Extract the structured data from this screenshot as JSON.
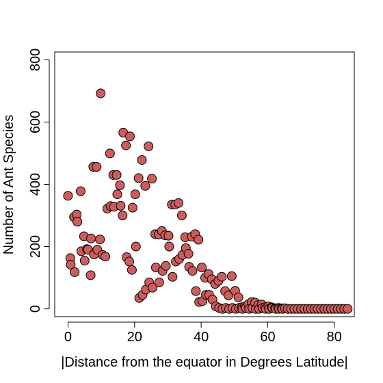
{
  "chart_data": {
    "type": "scatter",
    "title": "",
    "xlabel": "|Distance from the equator in Degrees Latitude|",
    "ylabel": "Number of Ant Species",
    "xlim": [
      -4,
      86
    ],
    "ylim": [
      -25,
      825
    ],
    "x_ticks": [
      0,
      20,
      40,
      60,
      80
    ],
    "y_ticks": [
      0,
      200,
      400,
      600,
      800
    ],
    "grid": false,
    "legend": "none",
    "marker_color": "#cd5c5c",
    "marker_edge_color": "#000000",
    "points": [
      [
        0,
        363
      ],
      [
        0.7,
        163
      ],
      [
        0.8,
        142
      ],
      [
        1.8,
        295
      ],
      [
        2,
        118
      ],
      [
        2.6,
        303
      ],
      [
        2.8,
        280
      ],
      [
        3.8,
        378
      ],
      [
        4,
        185
      ],
      [
        4.8,
        233
      ],
      [
        5,
        155
      ],
      [
        5.7,
        192
      ],
      [
        6,
        190
      ],
      [
        6.8,
        108
      ],
      [
        6.9,
        226
      ],
      [
        7.6,
        456
      ],
      [
        7.8,
        175
      ],
      [
        8.6,
        456
      ],
      [
        8.8,
        190
      ],
      [
        9.6,
        223
      ],
      [
        9.8,
        692
      ],
      [
        10.4,
        173
      ],
      [
        11.2,
        168
      ],
      [
        11.8,
        322
      ],
      [
        12.6,
        499
      ],
      [
        12.8,
        330
      ],
      [
        13.6,
        430
      ],
      [
        13.8,
        328
      ],
      [
        14.6,
        430
      ],
      [
        14.8,
        368
      ],
      [
        15.6,
        397
      ],
      [
        15.8,
        331
      ],
      [
        16.4,
        300
      ],
      [
        16.6,
        566
      ],
      [
        17.4,
        525
      ],
      [
        17.6,
        166
      ],
      [
        18.4,
        152
      ],
      [
        18.6,
        554
      ],
      [
        19.2,
        125
      ],
      [
        19.4,
        325
      ],
      [
        20.2,
        368
      ],
      [
        20.4,
        200
      ],
      [
        21.2,
        420
      ],
      [
        21.4,
        35
      ],
      [
        22.2,
        478
      ],
      [
        22.4,
        45
      ],
      [
        23.2,
        395
      ],
      [
        23.4,
        62
      ],
      [
        24.2,
        522
      ],
      [
        24.4,
        85
      ],
      [
        25.2,
        418
      ],
      [
        25.4,
        68
      ],
      [
        26.2,
        240
      ],
      [
        26.4,
        133
      ],
      [
        27.2,
        239
      ],
      [
        27.4,
        85
      ],
      [
        28.2,
        250
      ],
      [
        28.4,
        122
      ],
      [
        29.2,
        236
      ],
      [
        29.4,
        138
      ],
      [
        30.2,
        235
      ],
      [
        30.4,
        200
      ],
      [
        31.2,
        335
      ],
      [
        31.4,
        103
      ],
      [
        32.2,
        335
      ],
      [
        32.4,
        152
      ],
      [
        33.2,
        340
      ],
      [
        33.4,
        160
      ],
      [
        34.2,
        300
      ],
      [
        34.4,
        173
      ],
      [
        35.2,
        230
      ],
      [
        35.4,
        195
      ],
      [
        36.2,
        177
      ],
      [
        36.4,
        135
      ],
      [
        37.2,
        232
      ],
      [
        37.4,
        122
      ],
      [
        38.2,
        240
      ],
      [
        38.4,
        57
      ],
      [
        39.2,
        222
      ],
      [
        39.4,
        22
      ],
      [
        40.2,
        133
      ],
      [
        40.4,
        25
      ],
      [
        41.2,
        100
      ],
      [
        41.4,
        45
      ],
      [
        42.2,
        112
      ],
      [
        42.4,
        45
      ],
      [
        43.2,
        95
      ],
      [
        43.4,
        30
      ],
      [
        44.2,
        80
      ],
      [
        44.4,
        8
      ],
      [
        45.2,
        90
      ],
      [
        45.4,
        3
      ],
      [
        46.2,
        103
      ],
      [
        46.4,
        0
      ],
      [
        47.2,
        57
      ],
      [
        47.4,
        3
      ],
      [
        48.2,
        43
      ],
      [
        48.4,
        0
      ],
      [
        49.2,
        105
      ],
      [
        49.4,
        3
      ],
      [
        50.2,
        58
      ],
      [
        50.4,
        0
      ],
      [
        51.2,
        37
      ],
      [
        51.4,
        3
      ],
      [
        52.2,
        5
      ],
      [
        52.4,
        0
      ],
      [
        53.2,
        8
      ],
      [
        53.4,
        3
      ],
      [
        54.2,
        15
      ],
      [
        54.4,
        0
      ],
      [
        55.2,
        22
      ],
      [
        55.4,
        3
      ],
      [
        56.2,
        20
      ],
      [
        56.4,
        0
      ],
      [
        57.2,
        12
      ],
      [
        57.4,
        0
      ],
      [
        58.2,
        14
      ],
      [
        58.4,
        3
      ],
      [
        59.2,
        5
      ],
      [
        59.4,
        0
      ],
      [
        60.2,
        8
      ],
      [
        60.4,
        0
      ],
      [
        61.2,
        5
      ],
      [
        61.4,
        3
      ],
      [
        62.2,
        2
      ],
      [
        62.4,
        0
      ],
      [
        63.2,
        3
      ],
      [
        63.4,
        0
      ],
      [
        64.2,
        2
      ],
      [
        64.4,
        0
      ],
      [
        65.2,
        2
      ],
      [
        66,
        0
      ],
      [
        67,
        0
      ],
      [
        68,
        0
      ],
      [
        69,
        0
      ],
      [
        70,
        0
      ],
      [
        71,
        0
      ],
      [
        72,
        0
      ],
      [
        73,
        0
      ],
      [
        74,
        0
      ],
      [
        75,
        0
      ],
      [
        76,
        0
      ],
      [
        77,
        0
      ],
      [
        78,
        0
      ],
      [
        79,
        0
      ],
      [
        80,
        0
      ],
      [
        81,
        0
      ],
      [
        82,
        0
      ],
      [
        83,
        0
      ],
      [
        84,
        0
      ]
    ]
  }
}
